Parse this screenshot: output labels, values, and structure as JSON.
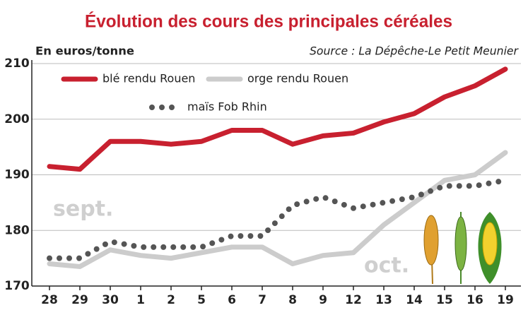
{
  "chart_data": {
    "type": "line",
    "title": "Évolution des cours des principales céréales",
    "y_label": "En euros/tonne",
    "source": "Source : La Dépêche-Le Petit Meunier",
    "annotations": [
      "sept.",
      "oct."
    ],
    "categories": [
      "28",
      "29",
      "30",
      "1",
      "2",
      "5",
      "6",
      "7",
      "8",
      "9",
      "12",
      "13",
      "14",
      "15",
      "16",
      "19"
    ],
    "series": [
      {
        "name": "blé rendu Rouen",
        "color": "#c8202f",
        "line_style": "solid",
        "values": [
          191.5,
          191,
          196,
          196,
          195.5,
          196,
          198,
          198,
          195.5,
          197,
          197.5,
          199.5,
          201,
          204,
          206,
          209
        ]
      },
      {
        "name": "orge rendu Rouen",
        "color": "#cccccc",
        "line_style": "solid",
        "values": [
          174,
          173.5,
          176.5,
          175.5,
          175,
          176,
          177,
          177,
          174,
          175.5,
          176,
          181,
          185,
          189,
          190,
          194
        ]
      },
      {
        "name": "maïs Fob Rhin",
        "color": "#555555",
        "line_style": "dotted",
        "values": [
          175,
          175,
          178,
          177,
          177,
          177,
          179,
          179,
          184.5,
          186,
          184,
          185,
          186,
          188,
          188,
          189
        ]
      }
    ],
    "ylim": [
      170,
      210
    ],
    "yticks": [
      170,
      180,
      190,
      200,
      210
    ],
    "grid": true,
    "legend": "upper left"
  }
}
